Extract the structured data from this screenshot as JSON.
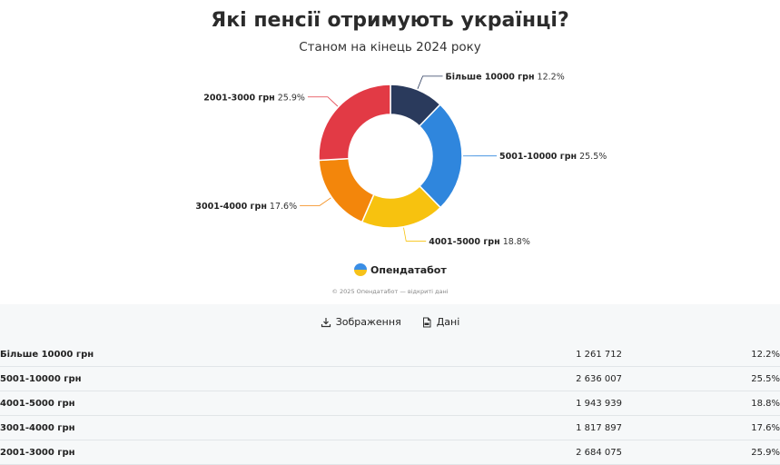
{
  "header": {
    "title": "Які пенсії отримують українці?",
    "subtitle": "Станом на кінець 2024 року"
  },
  "chart_data": {
    "type": "pie",
    "variant": "donut",
    "categories": [
      "Більше 10000 грн",
      "5001-10000 грн",
      "4001-5000 грн",
      "3001-4000 грн",
      "2001-3000 грн"
    ],
    "values": [
      12.2,
      25.5,
      18.8,
      17.6,
      25.9
    ],
    "value_labels": [
      "12.2%",
      "25.5%",
      "18.8%",
      "17.6%",
      "25.9%"
    ],
    "colors": [
      "#2a3a5c",
      "#2f86dd",
      "#f7c20f",
      "#f3860b",
      "#e23a45"
    ]
  },
  "brand": {
    "name": "Опендатабот"
  },
  "footer": {
    "copyright": "© 2025 Опендатабот — відкриті дані"
  },
  "actions": {
    "image_label": "Зображення",
    "data_label": "Дані"
  },
  "table": {
    "rows": [
      {
        "name": "Більше 10000 грн",
        "count": "1 261 712",
        "pct": "12.2%"
      },
      {
        "name": "5001-10000 грн",
        "count": "2 636 007",
        "pct": "25.5%"
      },
      {
        "name": "4001-5000 грн",
        "count": "1 943 939",
        "pct": "18.8%"
      },
      {
        "name": "3001-4000 грн",
        "count": "1 817 897",
        "pct": "17.6%"
      },
      {
        "name": "2001-3000 грн",
        "count": "2 684 075",
        "pct": "25.9%"
      }
    ]
  }
}
